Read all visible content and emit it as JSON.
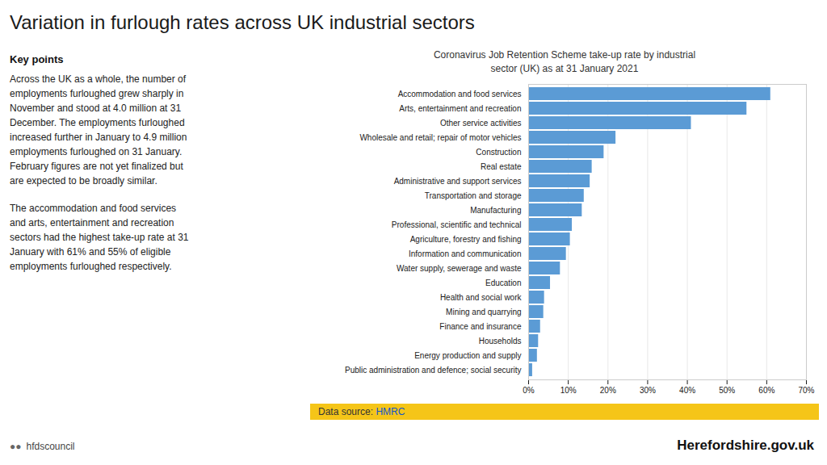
{
  "chart_data": {
    "type": "bar",
    "orientation": "horizontal",
    "title": "Variation in furlough rates across UK industrial sectors",
    "subtitle": "Coronavirus Job Retention Scheme take-up rate by industrial\nsector (UK) as at 31 January 2021",
    "categories": [
      "Accommodation and food services",
      "Arts, entertainment and recreation",
      "Other service activities",
      "Wholesale and retail; repair of motor vehicles",
      "Construction",
      "Real estate",
      "Administrative and support services",
      "Transportation and storage",
      "Manufacturing",
      "Professional, scientific and technical",
      "Agriculture, forestry and fishing",
      "Information and communication",
      "Water supply, sewerage and waste",
      "Education",
      "Health and social work",
      "Mining and quarrying",
      "Finance and insurance",
      "Households",
      "Energy production and supply",
      "Public administration and defence; social security"
    ],
    "values": [
      0.61,
      0.55,
      0.41,
      0.22,
      0.19,
      0.16,
      0.155,
      0.14,
      0.135,
      0.11,
      0.105,
      0.095,
      0.08,
      0.055,
      0.04,
      0.038,
      0.03,
      0.025,
      0.022,
      0.01
    ],
    "color": "#5b9bd5",
    "xlim": [
      0,
      0.7
    ],
    "xticks": [
      {
        "value": 0,
        "label": "0%"
      },
      {
        "value": 0.1,
        "label": "10%"
      },
      {
        "value": 0.2,
        "label": "20%"
      },
      {
        "value": 0.3,
        "label": "30%"
      },
      {
        "value": 0.4,
        "label": "40%"
      },
      {
        "value": 0.5,
        "label": "50%"
      },
      {
        "value": 0.6,
        "label": "60%"
      },
      {
        "value": 0.7,
        "label": "70%"
      }
    ],
    "grid": true,
    "annotations": [
      "Key points",
      "Across the UK as a whole, the number of\nemployments furloughed grew sharply in\nNovember and stood at 4.0 million at 31\nDecember. The employments furloughed\nincreased further in January to 4.9 million\nemployments furloughed on 31 January.\nFebruary figures are not yet finalized but\nare expected to be broadly similar.",
      "The accommodation and food services\nand arts, entertainment and recreation\nsectors had the highest take-up rate at 31\nJanuary with 61% and 55% of eligible\nemployments furloughed respectively.",
      "Data source: ",
      "HMRC",
      "●●",
      "hfdscouncil",
      "Herefordshire.gov.uk"
    ]
  }
}
